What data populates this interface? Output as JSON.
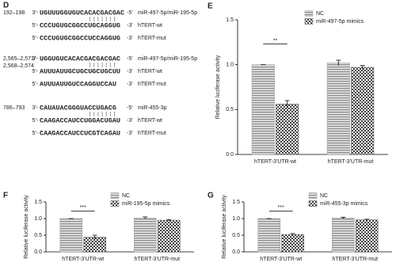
{
  "sequence_panel": {
    "label": "D",
    "groups": [
      {
        "positions": [
          "192–198"
        ],
        "rows": [
          {
            "end5": "3'-",
            "seq": "UGUUUGGUGUCACACGACGAC",
            "end3": "-5'",
            "name": "miR-497-5p/miR-195-5p"
          },
          {
            "end5": "5'-",
            "seq": "CCCUGUGCGGCCUGCAGGUG",
            "end3": "-3'",
            "name": "hTERT-wt"
          },
          {
            "end5": "5'-",
            "seq": "CCCUGUGCGGCCUCCAGGUG",
            "end3": "-3'",
            "name": "hTERT-mut"
          }
        ]
      },
      {
        "positions": [
          "2,565–2,571/",
          "2,568–2,574"
        ],
        "rows": [
          {
            "end5": "3'-",
            "seq": "UGGUGUCACACGACGACGAC",
            "end3": "-5'",
            "name": "miR-497-5p/miR-195-5p"
          },
          {
            "end5": "5'-",
            "seq": "AUUUAUUGCUGCUGCUGCUU",
            "end3": "-3'",
            "name": "hTERT-wt"
          },
          {
            "end5": "5'-",
            "seq": "AUUUAUUGUCCAGGUCCAU",
            "end3": "-3'",
            "name": "hTERT-mut"
          }
        ]
      },
      {
        "positions": [
          "786–793"
        ],
        "rows": [
          {
            "end5": "3'-",
            "seq": "CAUAUACGGGUACCUGACG",
            "end3": "-5'",
            "name": "miR-455-3p"
          },
          {
            "end5": "5'-",
            "seq": "CAAGACCAUCCUGGACUGAU",
            "end3": "-3'",
            "name": "hTERT-wt"
          },
          {
            "end5": "5'-",
            "seq": "CAAGACCAUCCUCGTCAGAU",
            "end3": "-3'",
            "name": "hTERT-mut"
          }
        ]
      }
    ]
  },
  "chart_data": [
    {
      "type": "bar",
      "label": "E",
      "ylabel": "Relative luciferase activity",
      "annotation": "**",
      "categories": [
        "hTERT-3'UTR-wt",
        "hTERT-3'UTR-mut"
      ],
      "series": [
        {
          "name": "NC",
          "color": "#a0a0a0",
          "pattern": "stripes",
          "values": [
            1.0,
            1.02
          ],
          "errors": [
            0,
            0.03
          ]
        },
        {
          "name": "miR-497-5p mimics",
          "color": "#505050",
          "pattern": "checker",
          "values": [
            0.56,
            0.97
          ],
          "errors": [
            0.04,
            0.02
          ]
        }
      ],
      "ylim": [
        0,
        1.5
      ],
      "yticks": [
        {
          "value": 0,
          "label": "0.0"
        },
        {
          "value": 0.5,
          "label": "0.5"
        },
        {
          "value": 1,
          "label": "1.0"
        },
        {
          "value": 1.5,
          "label": "1.5"
        }
      ]
    },
    {
      "type": "bar",
      "label": "F",
      "ylabel": "Relative luciferase activity",
      "annotation": "***",
      "categories": [
        "hTERT-3'UTR-wt",
        "hTERT-3'UTR-mut"
      ],
      "series": [
        {
          "name": "NC",
          "color": "#a0a0a0",
          "pattern": "stripes",
          "values": [
            1.0,
            1.02
          ],
          "errors": [
            0,
            0.03
          ]
        },
        {
          "name": "miR-195-5p mimics",
          "color": "#505050",
          "pattern": "checker",
          "values": [
            0.44,
            0.95
          ],
          "errors": [
            0.06,
            0.02
          ]
        }
      ],
      "ylim": [
        0,
        1.5
      ],
      "yticks": [
        {
          "value": 0,
          "label": "0.0"
        },
        {
          "value": 0.5,
          "label": "0.5"
        },
        {
          "value": 1,
          "label": "1.0"
        },
        {
          "value": 1.5,
          "label": "1.5"
        }
      ]
    },
    {
      "type": "bar",
      "label": "G",
      "ylabel": "Relative luciferase activity",
      "annotation": "***",
      "categories": [
        "hTERT-3'UTR-wt",
        "hTERT-3'UTR-mut"
      ],
      "series": [
        {
          "name": "NC",
          "color": "#a0a0a0",
          "pattern": "stripes",
          "values": [
            1.0,
            1.02
          ],
          "errors": [
            0,
            0.02
          ]
        },
        {
          "name": "miR-455-3p mimics",
          "color": "#505050",
          "pattern": "checker",
          "values": [
            0.52,
            0.96
          ],
          "errors": [
            0.03,
            0.02
          ]
        }
      ],
      "ylim": [
        0,
        1.5
      ],
      "yticks": [
        {
          "value": 0,
          "label": "0.0"
        },
        {
          "value": 0.5,
          "label": "0.5"
        },
        {
          "value": 1,
          "label": "1.0"
        },
        {
          "value": 1.5,
          "label": "1.5"
        }
      ]
    }
  ]
}
